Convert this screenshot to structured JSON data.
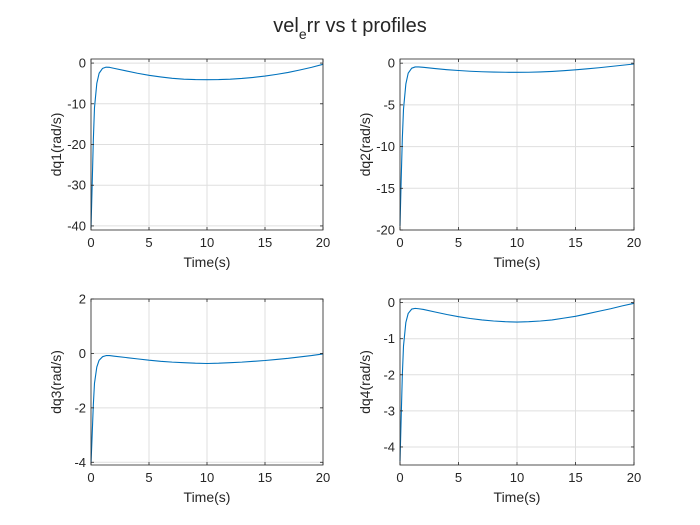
{
  "figure": {
    "title_main": "vel",
    "title_sub": "e",
    "title_rest": "rr vs t profiles"
  },
  "colors": {
    "background": "#ffffff",
    "line": "#0072bd",
    "grid": "#dfdfdf",
    "axis": "#262626"
  },
  "chart_data": [
    {
      "type": "line",
      "xlabel": "Time(s)",
      "ylabel": "dq1(rad/s)",
      "xlim": [
        0,
        20
      ],
      "ylim": [
        -41,
        1
      ],
      "xticks": [
        0,
        5,
        10,
        15,
        20
      ],
      "yticks": [
        -40,
        -30,
        -20,
        -10,
        0
      ],
      "grid": true,
      "series": [
        {
          "x": [
            0,
            0.1,
            0.2,
            0.3,
            0.5,
            0.7,
            1.0,
            1.3,
            1.6,
            2,
            3,
            4,
            5,
            6,
            7,
            8,
            9,
            10,
            11,
            12,
            13,
            14,
            15,
            16,
            17,
            18,
            19,
            20
          ],
          "y": [
            -40.5,
            -30,
            -19,
            -11,
            -5,
            -2.5,
            -1.3,
            -1.0,
            -1.05,
            -1.3,
            -1.9,
            -2.5,
            -3.0,
            -3.4,
            -3.75,
            -3.95,
            -4.05,
            -4.08,
            -4.05,
            -3.95,
            -3.78,
            -3.52,
            -3.2,
            -2.78,
            -2.3,
            -1.7,
            -1.05,
            -0.3
          ]
        }
      ]
    },
    {
      "type": "line",
      "xlabel": "Time(s)",
      "ylabel": "dq2(rad/s)",
      "xlim": [
        0,
        20
      ],
      "ylim": [
        -20,
        0.5
      ],
      "xticks": [
        0,
        5,
        10,
        15,
        20
      ],
      "yticks": [
        -20,
        -15,
        -10,
        -5,
        0
      ],
      "grid": true,
      "series": [
        {
          "x": [
            0,
            0.1,
            0.2,
            0.3,
            0.5,
            0.7,
            1.0,
            1.3,
            1.6,
            2,
            3,
            4,
            5,
            6,
            7,
            8,
            9,
            10,
            11,
            12,
            13,
            14,
            15,
            16,
            17,
            18,
            19,
            20
          ],
          "y": [
            -19.5,
            -14,
            -9,
            -5.5,
            -2.5,
            -1.2,
            -0.6,
            -0.45,
            -0.45,
            -0.5,
            -0.65,
            -0.78,
            -0.88,
            -0.97,
            -1.03,
            -1.07,
            -1.09,
            -1.1,
            -1.09,
            -1.05,
            -0.99,
            -0.9,
            -0.8,
            -0.68,
            -0.55,
            -0.4,
            -0.25,
            -0.1
          ]
        }
      ]
    },
    {
      "type": "line",
      "xlabel": "Time(s)",
      "ylabel": "dq3(rad/s)",
      "xlim": [
        0,
        20
      ],
      "ylim": [
        -4.1,
        2
      ],
      "xticks": [
        0,
        5,
        10,
        15,
        20
      ],
      "yticks": [
        -4,
        -2,
        0,
        2
      ],
      "grid": true,
      "series": [
        {
          "x": [
            0,
            0.1,
            0.2,
            0.3,
            0.5,
            0.7,
            1.0,
            1.3,
            1.6,
            2,
            3,
            4,
            5,
            6,
            7,
            8,
            9,
            10,
            11,
            12,
            13,
            14,
            15,
            16,
            17,
            18,
            19,
            20
          ],
          "y": [
            -4.05,
            -3.0,
            -1.9,
            -1.1,
            -0.5,
            -0.25,
            -0.12,
            -0.08,
            -0.08,
            -0.1,
            -0.15,
            -0.2,
            -0.25,
            -0.29,
            -0.32,
            -0.34,
            -0.36,
            -0.37,
            -0.36,
            -0.34,
            -0.32,
            -0.29,
            -0.26,
            -0.22,
            -0.18,
            -0.13,
            -0.08,
            -0.02
          ]
        }
      ]
    },
    {
      "type": "line",
      "xlabel": "Time(s)",
      "ylabel": "dq4(rad/s)",
      "xlim": [
        0,
        20
      ],
      "ylim": [
        -4.5,
        0.1
      ],
      "xticks": [
        0,
        5,
        10,
        15,
        20
      ],
      "yticks": [
        -4,
        -3,
        -2,
        -1,
        0
      ],
      "grid": true,
      "series": [
        {
          "x": [
            0,
            0.1,
            0.2,
            0.3,
            0.5,
            0.7,
            1.0,
            1.3,
            1.6,
            2,
            3,
            4,
            5,
            6,
            7,
            8,
            9,
            10,
            11,
            12,
            13,
            14,
            15,
            16,
            17,
            18,
            19,
            20
          ],
          "y": [
            -4.4,
            -3.2,
            -2.0,
            -1.2,
            -0.55,
            -0.3,
            -0.18,
            -0.16,
            -0.17,
            -0.19,
            -0.26,
            -0.33,
            -0.39,
            -0.44,
            -0.48,
            -0.51,
            -0.53,
            -0.54,
            -0.53,
            -0.51,
            -0.48,
            -0.43,
            -0.38,
            -0.31,
            -0.24,
            -0.17,
            -0.09,
            -0.02
          ]
        }
      ]
    }
  ]
}
